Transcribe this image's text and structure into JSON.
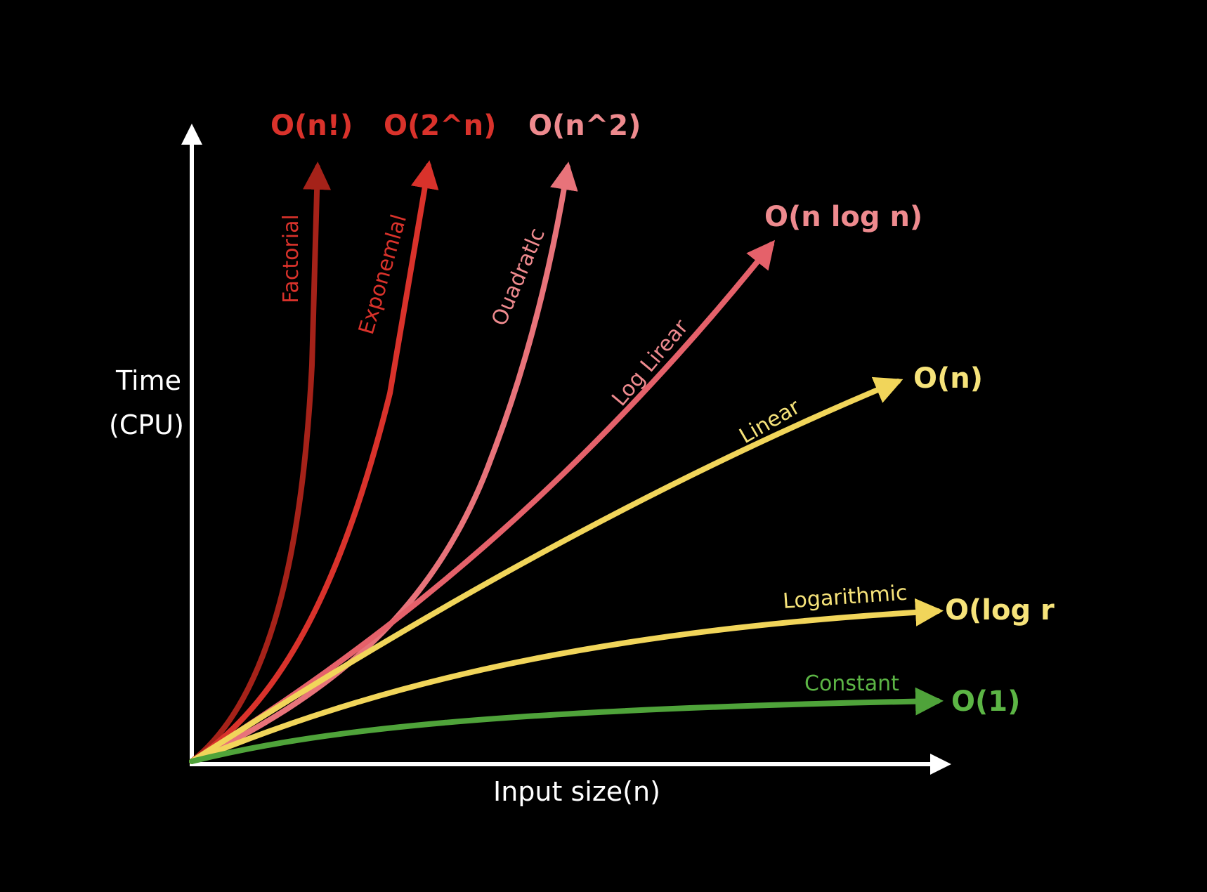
{
  "axes": {
    "y_label_line1": "Time",
    "y_label_line2": "(CPU)",
    "x_label": "Input size(n)"
  },
  "curves": [
    {
      "id": "factorial",
      "notation": "O(n!)",
      "name": "Factorial",
      "color": "#a52219"
    },
    {
      "id": "exponential",
      "notation": "O(2^n)",
      "name": "Exponemlal",
      "color": "#d9322b"
    },
    {
      "id": "quadratic",
      "notation": "O(n^2)",
      "name": "Ouadratlc",
      "color": "#e8737a"
    },
    {
      "id": "loglinear",
      "notation": "O(n log n)",
      "name": "Log Lirear",
      "color": "#e5616a"
    },
    {
      "id": "linear",
      "notation": "O(n)",
      "name": "Linear",
      "color": "#f1d55a"
    },
    {
      "id": "logarithmic",
      "notation": "O(log r",
      "name": "Logarithmic",
      "color": "#f1d55a"
    },
    {
      "id": "constant",
      "notation": "O(1)",
      "name": "Constant",
      "color": "#4fa33a"
    }
  ],
  "colors": {
    "background": "#000000",
    "axis": "#ffffff",
    "factorial_label": "#d9322b",
    "exponential_label": "#d9322b",
    "quadratic_label": "#ee8a8e",
    "loglinear_label": "#ee8a8e",
    "linear_label": "#f6e37a",
    "logarithmic_label": "#f6e37a",
    "constant_label": "#5cb545"
  }
}
